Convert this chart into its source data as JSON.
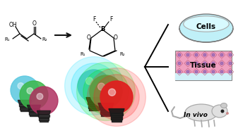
{
  "background_color": "#ffffff",
  "fig_width": 3.37,
  "fig_height": 1.89,
  "dpi": 100,
  "bulb_colors_left": [
    "#5ac8e0",
    "#3cb84a",
    "#b03060"
  ],
  "bulb_colors_right": [
    "#50c8e8",
    "#3cb84a",
    "#e02020"
  ],
  "glow_colors_right": [
    "#00ddff",
    "#00ee00",
    "#ff2020"
  ],
  "arrow_color": "#111111",
  "cells_fill": "#c0f0f8",
  "cells_inner": "#d8faff",
  "tissue_fill": "#f0a0c0",
  "tissue_line": "#c06080",
  "tissue_dot": "#9060b0",
  "mouse_fill": "#e0e0e0",
  "mouse_edge": "#aaaaaa",
  "label_cells": "Cells",
  "label_tissue": "Tissue",
  "label_invivo": "In vivo",
  "base_color": "#1a1a1a",
  "line_color": "#222222"
}
